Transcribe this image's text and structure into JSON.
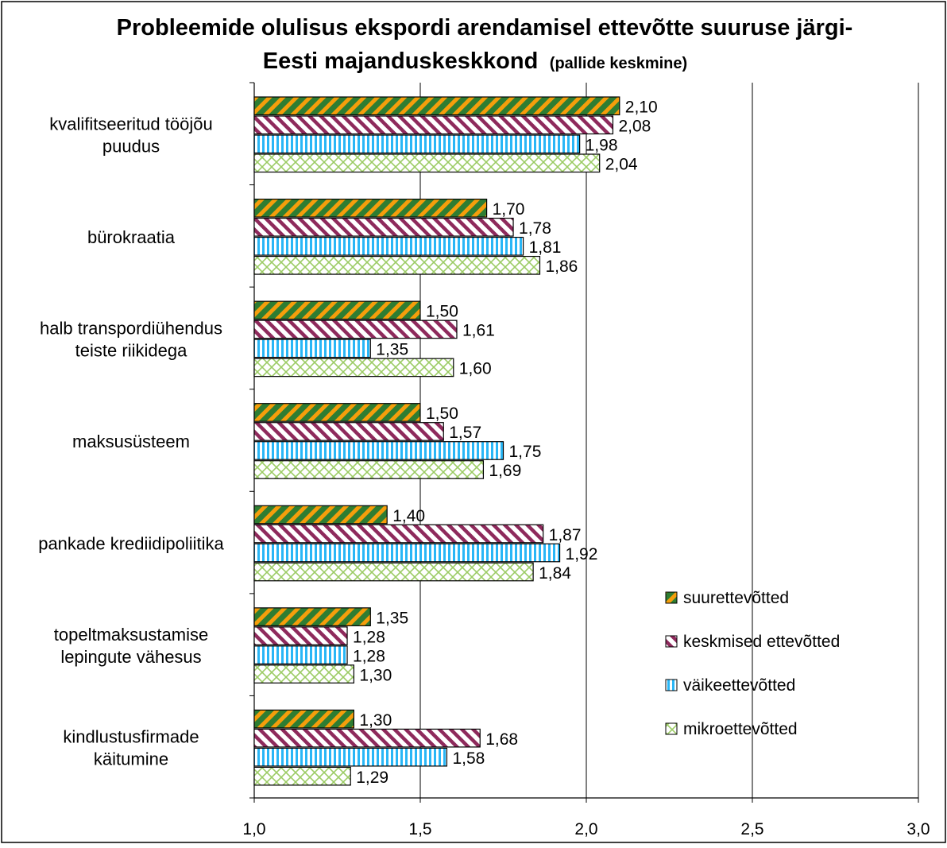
{
  "chart_data": {
    "type": "bar",
    "orientation": "horizontal",
    "title_line1": "Probleemide olulisus ekspordi arendamisel ettevõtte suuruse järgi-",
    "title_line2": "Eesti majanduskeskkond",
    "title_suffix": "(pallide keskmine)",
    "categories": [
      [
        "kvalifitseeritud tööjõu",
        "puudus"
      ],
      [
        "bürokraatia"
      ],
      [
        "halb transpordiühendus",
        "teiste riikidega"
      ],
      [
        "maksusüsteem"
      ],
      [
        "pankade krediidipoliitika"
      ],
      [
        "topeltmaksustamise",
        "lepingute vähesus"
      ],
      [
        "kindlustusfirmade",
        "käitumine"
      ]
    ],
    "series": [
      {
        "name": "suurettevõtted",
        "values": [
          2.1,
          1.7,
          1.5,
          1.5,
          1.4,
          1.35,
          1.3
        ],
        "labels": [
          "2,10",
          "1,70",
          "1,50",
          "1,50",
          "1,40",
          "1,35",
          "1,30"
        ]
      },
      {
        "name": "keskmised ettevõtted",
        "values": [
          2.08,
          1.78,
          1.61,
          1.57,
          1.87,
          1.28,
          1.68
        ],
        "labels": [
          "2,08",
          "1,78",
          "1,61",
          "1,57",
          "1,87",
          "1,28",
          "1,68"
        ]
      },
      {
        "name": "väikeettevõtted",
        "values": [
          1.98,
          1.81,
          1.35,
          1.75,
          1.92,
          1.28,
          1.58
        ],
        "labels": [
          "1,98",
          "1,81",
          "1,35",
          "1,75",
          "1,92",
          "1,28",
          "1,58"
        ]
      },
      {
        "name": "mikroettevõtted",
        "values": [
          2.04,
          1.86,
          1.6,
          1.69,
          1.84,
          1.3,
          1.29
        ],
        "labels": [
          "2,04",
          "1,86",
          "1,60",
          "1,69",
          "1,84",
          "1,30",
          "1,29"
        ]
      }
    ],
    "xlim": [
      1.0,
      3.0
    ],
    "xticks": [
      1.0,
      1.5,
      2.0,
      2.5,
      3.0
    ],
    "xtick_labels": [
      "1,0",
      "1,5",
      "2,0",
      "2,5",
      "3,0"
    ],
    "grid": "vertical",
    "legend_position": "right-bottom",
    "colors": {
      "suurettevõtted": "#2e7d32",
      "suurettevõtted_stripe": "#f59e0b",
      "keskmised ettevõtted": "#8e2a5c",
      "väikeettevõtted": "#29b6f6",
      "mikroettevõtted": "#9ccc65"
    }
  }
}
